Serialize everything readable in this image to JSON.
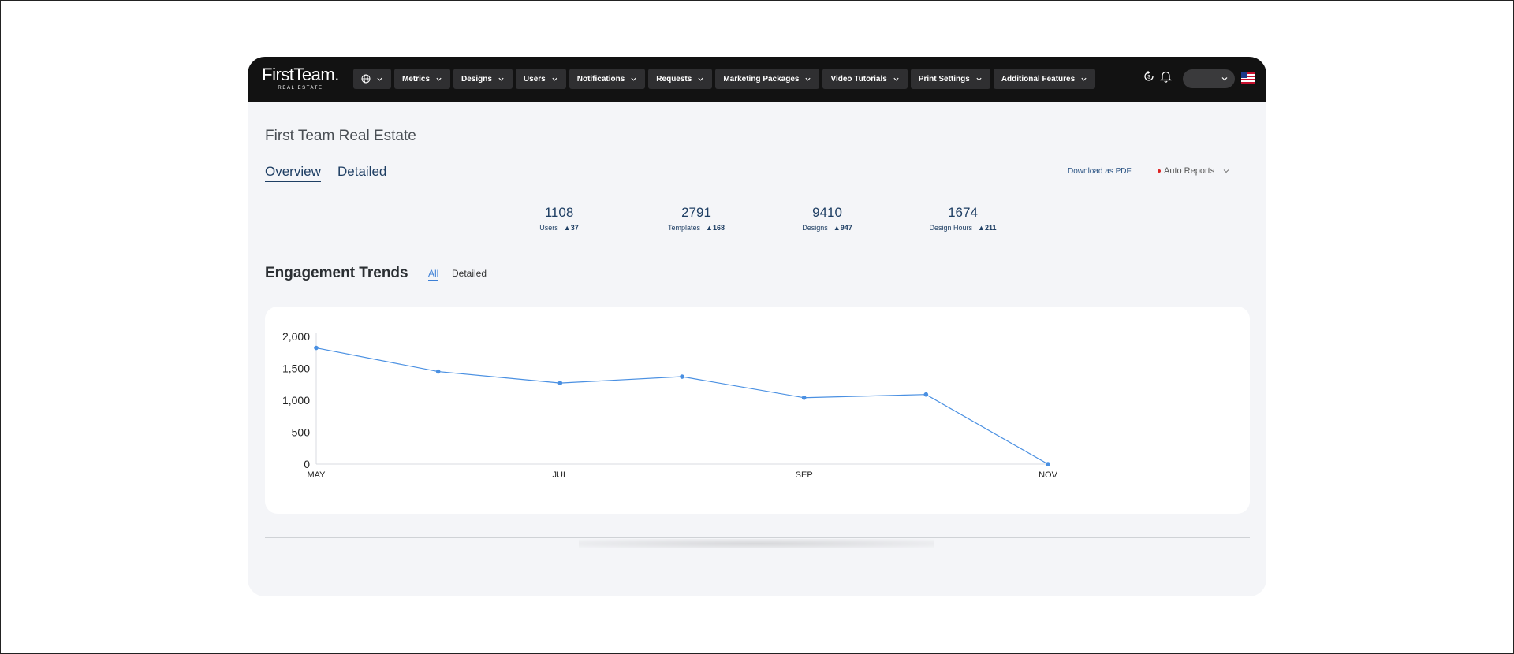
{
  "brand": {
    "logo_main": "FirstTeam.",
    "logo_sub": "REAL ESTATE"
  },
  "nav": {
    "items": [
      {
        "label": "Metrics"
      },
      {
        "label": "Designs"
      },
      {
        "label": "Users"
      },
      {
        "label": "Notifications"
      },
      {
        "label": "Requests"
      },
      {
        "label": "Marketing Packages"
      },
      {
        "label": "Video Tutorials"
      },
      {
        "label": "Print Settings"
      },
      {
        "label": "Additional Features"
      }
    ],
    "icons": [
      "globe-icon",
      "sync-icon",
      "bell-icon",
      "flag-us-icon"
    ]
  },
  "page": {
    "org_title": "First Team Real Estate",
    "tabs": [
      {
        "label": "Overview",
        "active": true
      },
      {
        "label": "Detailed",
        "active": false
      }
    ],
    "download_pdf": "Download as PDF",
    "auto_reports": "Auto Reports"
  },
  "stats": [
    {
      "value": "1108",
      "label": "Users",
      "delta": "▲37"
    },
    {
      "value": "2791",
      "label": "Templates",
      "delta": "▲168"
    },
    {
      "value": "9410",
      "label": "Designs",
      "delta": "▲947"
    },
    {
      "value": "1674",
      "label": "Design Hours",
      "delta": "▲211"
    }
  ],
  "engagement": {
    "title": "Engagement Trends",
    "filters": [
      {
        "label": "All",
        "active": true
      },
      {
        "label": "Detailed",
        "active": false
      }
    ]
  },
  "colors": {
    "accent": "#4a90e2",
    "nav_bg": "#121212",
    "text_dark_blue": "#1f3f64"
  },
  "chart_data": {
    "type": "line",
    "x": [
      "MAY",
      "",
      "JUL",
      "",
      "SEP",
      "",
      "NOV"
    ],
    "x_tick_labels": [
      "MAY",
      "JUL",
      "SEP",
      "NOV"
    ],
    "series": [
      {
        "values": [
          1820,
          1450,
          1270,
          1370,
          1040,
          1090,
          0
        ]
      }
    ],
    "y_tick_labels": [
      "0",
      "500",
      "1,000",
      "1,500",
      "2,000"
    ],
    "ylim": [
      0,
      2000
    ],
    "grid": false
  }
}
